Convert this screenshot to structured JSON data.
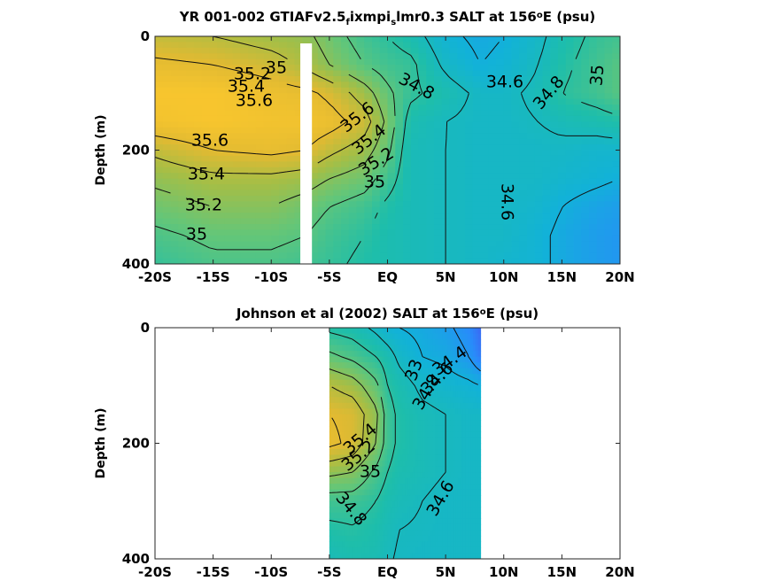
{
  "chart_data": [
    {
      "type": "heatmap",
      "title_parts": [
        "YR 001-002 GTIAFv2.5",
        "f",
        "ixmpi",
        "s",
        "lmr0.3 SALT at 156",
        "o",
        "E (psu)"
      ],
      "xlabel": "",
      "ylabel": "Depth (m)",
      "x_ticks": [
        -20,
        -15,
        -10,
        -5,
        0,
        5,
        10,
        15,
        20
      ],
      "x_tick_labels": [
        "-20S",
        "-15S",
        "-10S",
        "-5S",
        "EQ",
        "5N",
        "10N",
        "15N",
        "20N"
      ],
      "y_ticks": [
        0,
        200,
        400
      ],
      "y_tick_labels": [
        "0",
        "200",
        "400"
      ],
      "xlim": [
        -20,
        20
      ],
      "ylim": [
        400,
        0
      ],
      "y_reversed": true,
      "colormap": "parula",
      "clim": [
        34.0,
        35.9
      ],
      "gap_x": [
        -7.5,
        -6.5
      ],
      "grid": false,
      "legend": "none",
      "depths": [
        0,
        50,
        100,
        150,
        200,
        250,
        300,
        350,
        400
      ],
      "lat": [
        -20,
        -15,
        -10,
        -7,
        -5,
        -2,
        0,
        2,
        5,
        8,
        10,
        13,
        15,
        18,
        20
      ],
      "salinity": [
        [
          35.45,
          35.4,
          35.3,
          35.25,
          35.1,
          34.9,
          34.8,
          34.7,
          34.45,
          34.35,
          34.4,
          34.55,
          34.7,
          34.85,
          34.9
        ],
        [
          35.65,
          35.6,
          35.5,
          35.35,
          35.2,
          35.0,
          34.9,
          34.85,
          34.55,
          34.4,
          34.45,
          34.6,
          34.75,
          34.9,
          35.0
        ],
        [
          35.8,
          35.8,
          35.7,
          35.65,
          35.55,
          35.3,
          35.05,
          34.85,
          34.7,
          34.55,
          34.55,
          34.65,
          34.8,
          34.9,
          35.0
        ],
        [
          35.75,
          35.8,
          35.75,
          35.75,
          35.7,
          35.5,
          35.15,
          34.7,
          34.6,
          34.55,
          34.55,
          34.6,
          34.65,
          34.7,
          34.75
        ],
        [
          35.45,
          35.6,
          35.65,
          35.6,
          35.45,
          35.3,
          35.05,
          34.65,
          34.6,
          34.55,
          34.55,
          34.55,
          34.55,
          34.5,
          34.5
        ],
        [
          35.25,
          35.35,
          35.35,
          35.3,
          35.2,
          35.1,
          34.9,
          34.65,
          34.6,
          34.55,
          34.55,
          34.55,
          34.5,
          34.45,
          34.4
        ],
        [
          35.1,
          35.2,
          35.2,
          35.1,
          35.0,
          34.9,
          34.75,
          34.65,
          34.6,
          34.55,
          34.55,
          34.5,
          34.4,
          34.3,
          34.25
        ],
        [
          34.95,
          35.05,
          35.05,
          35.0,
          34.9,
          34.8,
          34.7,
          34.65,
          34.6,
          34.55,
          34.55,
          34.45,
          34.35,
          34.25,
          34.2
        ],
        [
          34.85,
          34.95,
          34.95,
          34.9,
          34.85,
          34.75,
          34.7,
          34.65,
          34.6,
          34.55,
          34.5,
          34.45,
          34.35,
          34.25,
          34.2
        ]
      ],
      "contour_labels": [
        "35.2",
        "35",
        "35.4",
        "35.6",
        "35.6",
        "35.4",
        "35.2",
        "35",
        "35.6",
        "35.4",
        "35.2",
        "35",
        "34.8",
        "34.6",
        "34.8",
        "35",
        "34.6"
      ]
    },
    {
      "type": "heatmap",
      "title_parts": [
        "Johnson et al (2002) SALT at 156",
        "o",
        "E (psu)"
      ],
      "xlabel": "",
      "ylabel": "Depth (m)",
      "x_ticks": [
        -20,
        -15,
        -10,
        -5,
        0,
        5,
        10,
        15,
        20
      ],
      "x_tick_labels": [
        "-20S",
        "-15S",
        "-10S",
        "-5S",
        "EQ",
        "5N",
        "10N",
        "15N",
        "20N"
      ],
      "y_ticks": [
        0,
        200,
        400
      ],
      "y_tick_labels": [
        "0",
        "200",
        "400"
      ],
      "xlim": [
        -20,
        20
      ],
      "ylim": [
        400,
        0
      ],
      "y_reversed": true,
      "colormap": "parula",
      "clim": [
        34.0,
        35.9
      ],
      "data_extent_x": [
        -5,
        8
      ],
      "grid": false,
      "legend": "none",
      "depths": [
        0,
        50,
        100,
        150,
        200,
        250,
        300,
        350,
        400
      ],
      "lat": [
        -5,
        -3,
        -1,
        0,
        1,
        3,
        5,
        7,
        8
      ],
      "salinity": [
        [
          34.75,
          34.7,
          34.55,
          34.45,
          34.4,
          34.35,
          34.25,
          34.1,
          33.9
        ],
        [
          35.05,
          34.95,
          34.8,
          34.7,
          34.55,
          34.4,
          34.35,
          34.2,
          34.0
        ],
        [
          35.4,
          35.3,
          35.05,
          34.8,
          34.7,
          34.55,
          34.5,
          34.45,
          34.4
        ],
        [
          35.6,
          35.55,
          35.25,
          34.9,
          34.75,
          34.65,
          34.6,
          34.55,
          34.55
        ],
        [
          35.65,
          35.55,
          35.2,
          34.9,
          34.75,
          34.65,
          34.6,
          34.55,
          34.55
        ],
        [
          35.25,
          35.2,
          34.95,
          34.8,
          34.7,
          34.65,
          34.6,
          34.55,
          34.55
        ],
        [
          34.9,
          34.9,
          34.8,
          34.7,
          34.65,
          34.6,
          34.55,
          34.55,
          34.55
        ],
        [
          34.75,
          34.78,
          34.72,
          34.65,
          34.6,
          34.58,
          34.55,
          34.55,
          34.55
        ],
        [
          34.65,
          34.7,
          34.68,
          34.62,
          34.58,
          34.55,
          34.55,
          34.55,
          34.55
        ]
      ],
      "contour_labels": [
        "34.4",
        "34.6",
        "34.8",
        "33",
        "35.4",
        "35.2",
        "35",
        "34.8",
        "34.6"
      ]
    }
  ]
}
